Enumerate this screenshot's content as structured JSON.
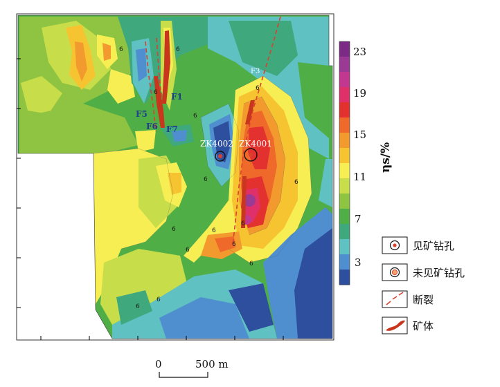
{
  "colorbar": {
    "unit_label": "ηs/%",
    "ticks": [
      "23",
      "19",
      "15",
      "11",
      "7",
      "3"
    ],
    "colors": [
      "#7b2a86",
      "#9b3a94",
      "#c2378f",
      "#e0306a",
      "#e3312f",
      "#ef6a2a",
      "#f39a2f",
      "#f6c431",
      "#f7ee54",
      "#c8dd4a",
      "#8ec441",
      "#4fae46",
      "#3fa87d",
      "#5fc1c2",
      "#4f8fd0",
      "#2e4f9e"
    ]
  },
  "map_labels": {
    "zk4002": "ZK4002",
    "zk4001": "ZK4001",
    "f1": "F1",
    "f3": "F3",
    "f5": "F5",
    "f6": "F6",
    "f7": "F7"
  },
  "contour_labels": [
    "6",
    "6",
    "6",
    "6",
    "6",
    "6",
    "6",
    "6",
    "6",
    "6",
    "6",
    "6",
    "6",
    "6",
    "6"
  ],
  "legend": {
    "items": [
      {
        "icon": "ore-found-drillhole-icon",
        "label": "见矿钻孔"
      },
      {
        "icon": "no-ore-drillhole-icon",
        "label": "未见矿钻孔"
      },
      {
        "icon": "fault-icon",
        "label": "断裂"
      },
      {
        "icon": "orebody-icon",
        "label": "矿体"
      }
    ]
  },
  "scale_bar": {
    "start_label": "0",
    "end_label": "500 m"
  }
}
